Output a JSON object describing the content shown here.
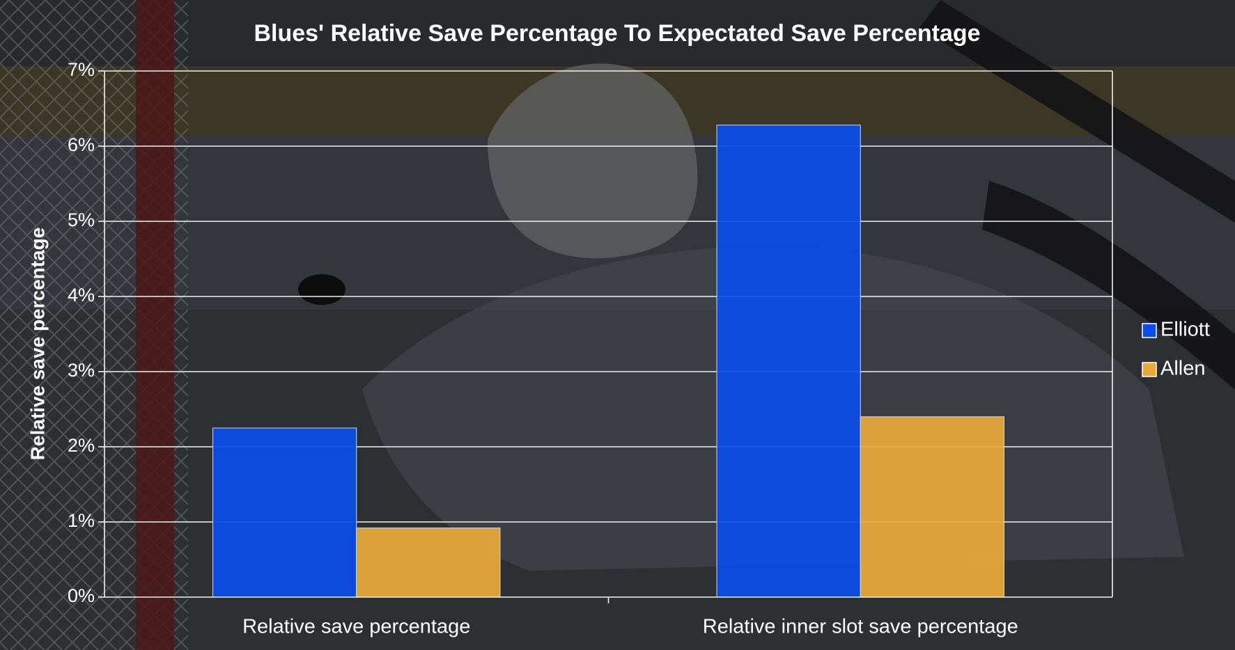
{
  "chart_data": {
    "type": "bar",
    "title": "Blues' Relative Save Percentage To Expectated Save Percentage",
    "xlabel": "",
    "ylabel": "Relative save percentage",
    "categories": [
      "Relative save percentage",
      "Relative inner slot save percentage"
    ],
    "series": [
      {
        "name": "Elliott",
        "color": "#0a4de8",
        "values": [
          2.25,
          6.28
        ]
      },
      {
        "name": "Allen",
        "color": "#e9a93a",
        "values": [
          0.92,
          2.4
        ]
      }
    ],
    "ylim": [
      0,
      7
    ],
    "yticks": [
      0,
      1,
      2,
      3,
      4,
      5,
      6,
      7
    ],
    "ytick_labels": [
      "0%",
      "1%",
      "2%",
      "3%",
      "4%",
      "5%",
      "6%",
      "7%"
    ],
    "grid": true,
    "legend_position": "right",
    "background": "dimmed hockey goalie photograph"
  }
}
